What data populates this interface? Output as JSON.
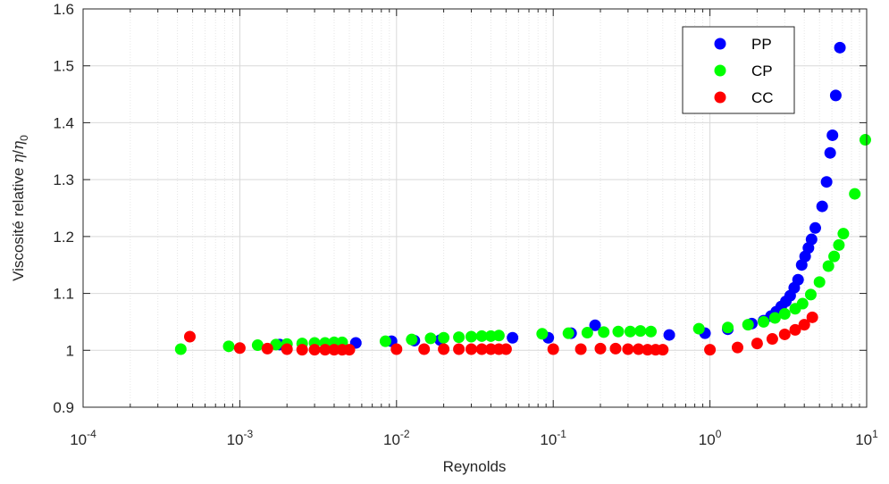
{
  "chart_data": {
    "type": "scatter",
    "title": "",
    "xlabel": "Reynolds",
    "ylabel_text": "Viscosité relative ",
    "ylabel_eta": "η",
    "ylabel_slash": "/",
    "ylabel_eta0": "η",
    "ylabel_sub": "0",
    "xscale": "log",
    "xlim": [
      0.0001,
      10
    ],
    "ylim": [
      0.9,
      1.6
    ],
    "grid": true,
    "legend_position": "top-right",
    "x_ticks": [
      {
        "base": "10",
        "exp": "-4"
      },
      {
        "base": "10",
        "exp": "-3"
      },
      {
        "base": "10",
        "exp": "-2"
      },
      {
        "base": "10",
        "exp": "-1"
      },
      {
        "base": "10",
        "exp": "0"
      },
      {
        "base": "10",
        "exp": "1"
      }
    ],
    "y_ticks": [
      "0.9",
      "1",
      "1.1",
      "1.2",
      "1.3",
      "1.4",
      "1.5",
      "1.6"
    ],
    "series": [
      {
        "name": "PP",
        "color": "#0000ff",
        "points": [
          [
            0.0018,
            1.01
          ],
          [
            0.0055,
            1.013
          ],
          [
            0.0093,
            1.016
          ],
          [
            0.013,
            1.017
          ],
          [
            0.019,
            1.018
          ],
          [
            0.055,
            1.022
          ],
          [
            0.093,
            1.022
          ],
          [
            0.13,
            1.03
          ],
          [
            0.185,
            1.044
          ],
          [
            0.55,
            1.027
          ],
          [
            0.93,
            1.03
          ],
          [
            1.3,
            1.037
          ],
          [
            1.85,
            1.047
          ],
          [
            2.2,
            1.052
          ],
          [
            2.45,
            1.06
          ],
          [
            2.65,
            1.068
          ],
          [
            2.85,
            1.077
          ],
          [
            3.05,
            1.086
          ],
          [
            3.25,
            1.096
          ],
          [
            3.45,
            1.11
          ],
          [
            3.65,
            1.124
          ],
          [
            3.85,
            1.15
          ],
          [
            4.05,
            1.165
          ],
          [
            4.25,
            1.18
          ],
          [
            4.45,
            1.195
          ],
          [
            4.7,
            1.215
          ],
          [
            5.2,
            1.253
          ],
          [
            5.55,
            1.296
          ],
          [
            5.85,
            1.347
          ],
          [
            6.05,
            1.378
          ],
          [
            6.35,
            1.448
          ],
          [
            6.75,
            1.532
          ]
        ]
      },
      {
        "name": "CP",
        "color": "#00ff00",
        "points": [
          [
            0.00042,
            1.002
          ],
          [
            0.00085,
            1.007
          ],
          [
            0.0013,
            1.009
          ],
          [
            0.0017,
            1.01
          ],
          [
            0.002,
            1.011
          ],
          [
            0.0025,
            1.012
          ],
          [
            0.003,
            1.013
          ],
          [
            0.0035,
            1.013
          ],
          [
            0.004,
            1.014
          ],
          [
            0.0045,
            1.014
          ],
          [
            0.0085,
            1.016
          ],
          [
            0.0125,
            1.019
          ],
          [
            0.0165,
            1.021
          ],
          [
            0.02,
            1.022
          ],
          [
            0.025,
            1.023
          ],
          [
            0.03,
            1.024
          ],
          [
            0.035,
            1.025
          ],
          [
            0.04,
            1.025
          ],
          [
            0.045,
            1.026
          ],
          [
            0.085,
            1.029
          ],
          [
            0.125,
            1.03
          ],
          [
            0.165,
            1.031
          ],
          [
            0.21,
            1.032
          ],
          [
            0.26,
            1.033
          ],
          [
            0.31,
            1.033
          ],
          [
            0.36,
            1.034
          ],
          [
            0.42,
            1.033
          ],
          [
            0.85,
            1.038
          ],
          [
            1.3,
            1.04
          ],
          [
            1.75,
            1.045
          ],
          [
            2.2,
            1.05
          ],
          [
            2.6,
            1.057
          ],
          [
            3.0,
            1.064
          ],
          [
            3.5,
            1.073
          ],
          [
            3.9,
            1.082
          ],
          [
            4.4,
            1.098
          ],
          [
            5.0,
            1.12
          ],
          [
            5.7,
            1.148
          ],
          [
            6.2,
            1.165
          ],
          [
            6.65,
            1.185
          ],
          [
            7.1,
            1.205
          ],
          [
            8.4,
            1.275
          ],
          [
            9.8,
            1.37
          ]
        ]
      },
      {
        "name": "CC",
        "color": "#ff0000",
        "points": [
          [
            0.00048,
            1.024
          ],
          [
            0.001,
            1.004
          ],
          [
            0.0015,
            1.003
          ],
          [
            0.002,
            1.002
          ],
          [
            0.0025,
            1.001
          ],
          [
            0.003,
            1.001
          ],
          [
            0.0035,
            1.001
          ],
          [
            0.004,
            1.001
          ],
          [
            0.0045,
            1.001
          ],
          [
            0.005,
            1.001
          ],
          [
            0.01,
            1.002
          ],
          [
            0.015,
            1.002
          ],
          [
            0.02,
            1.002
          ],
          [
            0.025,
            1.002
          ],
          [
            0.03,
            1.002
          ],
          [
            0.035,
            1.002
          ],
          [
            0.04,
            1.002
          ],
          [
            0.045,
            1.002
          ],
          [
            0.05,
            1.002
          ],
          [
            0.1,
            1.002
          ],
          [
            0.15,
            1.002
          ],
          [
            0.2,
            1.003
          ],
          [
            0.25,
            1.003
          ],
          [
            0.3,
            1.002
          ],
          [
            0.35,
            1.002
          ],
          [
            0.4,
            1.001
          ],
          [
            0.45,
            1.001
          ],
          [
            0.5,
            1.001
          ],
          [
            1.0,
            1.001
          ],
          [
            1.5,
            1.005
          ],
          [
            2.0,
            1.012
          ],
          [
            2.5,
            1.02
          ],
          [
            3.0,
            1.028
          ],
          [
            3.5,
            1.036
          ],
          [
            4.0,
            1.045
          ],
          [
            4.5,
            1.058
          ]
        ]
      }
    ]
  }
}
